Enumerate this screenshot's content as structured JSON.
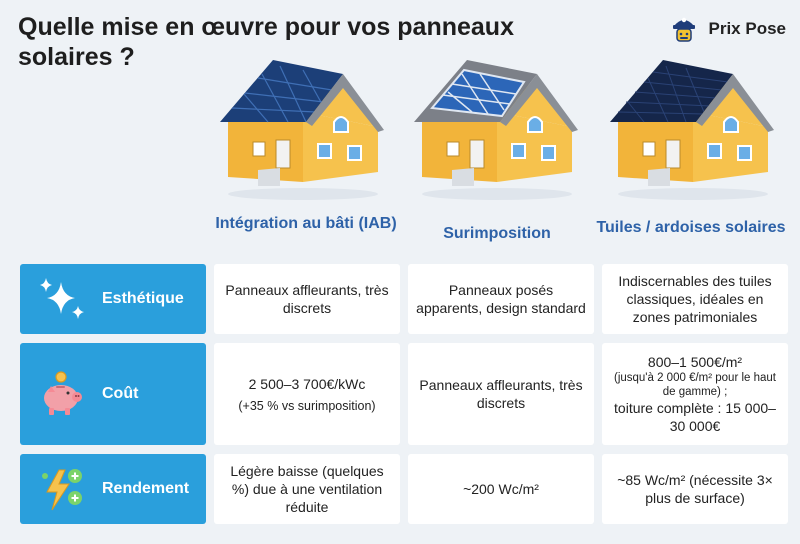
{
  "title": "Quelle mise en œuvre pour vos panneaux solaires ?",
  "brand": {
    "name": "Prix Pose",
    "icon": "builder-mascot-icon"
  },
  "columns": [
    {
      "label": "Intégration au bâti (IAB)",
      "icon": "house-integrated-panels-icon"
    },
    {
      "label": "Surimposition",
      "icon": "house-surimposed-panels-icon"
    },
    {
      "label": "Tuiles / ardoises solaires",
      "icon": "house-solar-tiles-icon"
    }
  ],
  "rows": [
    {
      "label": "Esthétique",
      "icon": "sparkles-icon",
      "cells": [
        {
          "text": "Panneaux affleurants, très discrets"
        },
        {
          "text": "Panneaux posés apparents, design standard"
        },
        {
          "text": "Indiscernables des tuiles classiques, idéales en zones patrimoniales"
        }
      ]
    },
    {
      "label": "Coût",
      "icon": "piggy-bank-icon",
      "cells": [
        {
          "main": "2 500–3 700€/kWc",
          "note": "(+35 % vs surimposition)"
        },
        {
          "text": "Panneaux affleurants, très discrets"
        },
        {
          "main": "800–1 500€/m²",
          "note": "(jusqu'à 2 000 €/m² pour le haut de gamme) ;",
          "extra": "toiture complète : 15 000–30 000€"
        }
      ]
    },
    {
      "label": "Rendement",
      "icon": "lightning-plus-icon",
      "cells": [
        {
          "text": "Légère baisse (quelques %) due à une ventilation réduite"
        },
        {
          "text": "~200 Wc/m²"
        },
        {
          "text": "~85 Wc/m² (nécessite 3× plus de surface)"
        }
      ]
    }
  ],
  "colors": {
    "accent": "#2a9fdc",
    "heading": "#2e62a8",
    "background": "#eef2f6"
  }
}
